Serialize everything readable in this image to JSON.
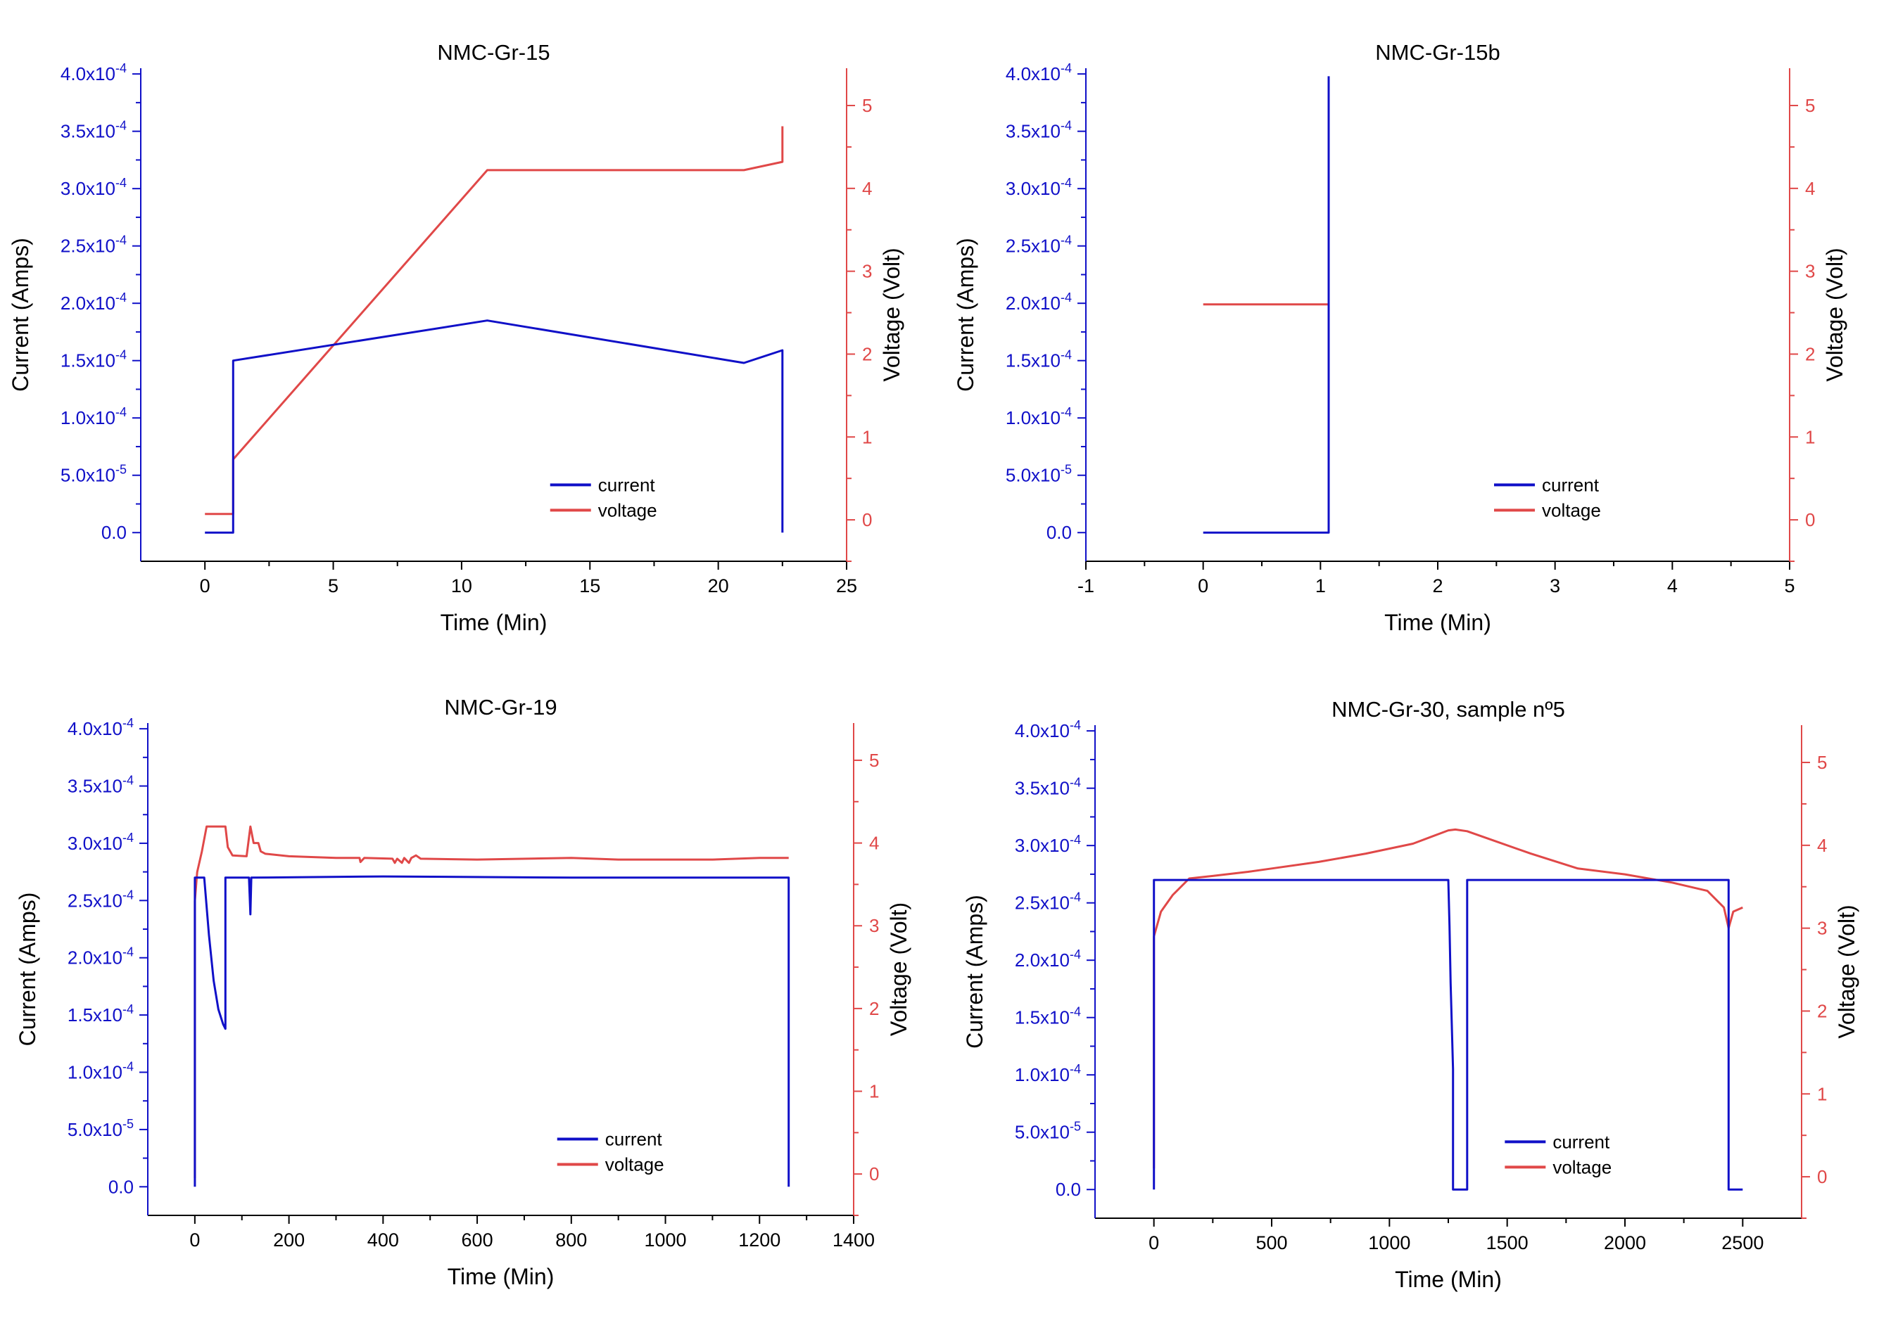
{
  "colors": {
    "current": "#1010c8",
    "voltage": "#e04848",
    "axis": "#000000",
    "text": "#000000"
  },
  "chart_data": [
    {
      "type": "line",
      "title": "NMC-Gr-15",
      "xlabel": "Time (Min)",
      "ylabel": "Current (Amps)",
      "y2label": "Voltage (Volt)",
      "xlim": [
        -2.5,
        25
      ],
      "ylim": [
        -2.5e-05,
        0.000405
      ],
      "y2lim": [
        -0.5,
        5.45
      ],
      "xticks": [
        0,
        5,
        10,
        15,
        20,
        25
      ],
      "xtick_labels": [
        "0",
        "5",
        "10",
        "15",
        "20",
        "25"
      ],
      "yticks": [
        0,
        5e-05,
        0.0001,
        0.00015,
        0.0002,
        0.00025,
        0.0003,
        0.00035,
        0.0004
      ],
      "ytick_labels": [
        {
          "mant": "0.0",
          "exp": ""
        },
        {
          "mant": "5.0x10",
          "exp": "-5"
        },
        {
          "mant": "1.0x10",
          "exp": "-4"
        },
        {
          "mant": "1.5x10",
          "exp": "-4"
        },
        {
          "mant": "2.0x10",
          "exp": "-4"
        },
        {
          "mant": "2.5x10",
          "exp": "-4"
        },
        {
          "mant": "3.0x10",
          "exp": "-4"
        },
        {
          "mant": "3.5x10",
          "exp": "-4"
        },
        {
          "mant": "4.0x10",
          "exp": "-4"
        }
      ],
      "y2ticks": [
        0,
        1,
        2,
        3,
        4,
        5
      ],
      "y2tick_labels": [
        "0",
        "1",
        "2",
        "3",
        "4",
        "5"
      ],
      "legend": {
        "position": "bottom-right",
        "entries": [
          "current",
          "voltage"
        ]
      },
      "series": [
        {
          "name": "current",
          "axis": "left",
          "points": [
            [
              0,
              0
            ],
            [
              1.1,
              0
            ],
            [
              1.1,
              0.00015
            ],
            [
              11,
              0.000185
            ],
            [
              21,
              0.000148
            ],
            [
              22.5,
              0.000159
            ],
            [
              22.5,
              0
            ]
          ]
        },
        {
          "name": "voltage",
          "axis": "right",
          "points": [
            [
              0,
              0.07
            ],
            [
              1.1,
              0.07
            ],
            [
              1.1,
              0.73
            ],
            [
              11,
              4.22
            ],
            [
              21,
              4.22
            ],
            [
              22.5,
              4.32
            ],
            [
              22.5,
              4.75
            ]
          ]
        }
      ]
    },
    {
      "type": "line",
      "title": "NMC-Gr-15b",
      "xlabel": "Time (Min)",
      "ylabel": "Current (Amps)",
      "y2label": "Voltage (Volt)",
      "xlim": [
        -1,
        5
      ],
      "ylim": [
        -2.5e-05,
        0.000405
      ],
      "y2lim": [
        -0.5,
        5.45
      ],
      "xticks": [
        -1,
        0,
        1,
        2,
        3,
        4,
        5
      ],
      "xtick_labels": [
        "-1",
        "0",
        "1",
        "2",
        "3",
        "4",
        "5"
      ],
      "yticks": [
        0,
        5e-05,
        0.0001,
        0.00015,
        0.0002,
        0.00025,
        0.0003,
        0.00035,
        0.0004
      ],
      "ytick_labels": [
        {
          "mant": "0.0",
          "exp": ""
        },
        {
          "mant": "5.0x10",
          "exp": "-5"
        },
        {
          "mant": "1.0x10",
          "exp": "-4"
        },
        {
          "mant": "1.5x10",
          "exp": "-4"
        },
        {
          "mant": "2.0x10",
          "exp": "-4"
        },
        {
          "mant": "2.5x10",
          "exp": "-4"
        },
        {
          "mant": "3.0x10",
          "exp": "-4"
        },
        {
          "mant": "3.5x10",
          "exp": "-4"
        },
        {
          "mant": "4.0x10",
          "exp": "-4"
        }
      ],
      "y2ticks": [
        0,
        1,
        2,
        3,
        4,
        5
      ],
      "y2tick_labels": [
        "0",
        "1",
        "2",
        "3",
        "4",
        "5"
      ],
      "legend": {
        "position": "bottom-right",
        "entries": [
          "current",
          "voltage"
        ]
      },
      "series": [
        {
          "name": "current",
          "axis": "left",
          "points": [
            [
              0,
              0
            ],
            [
              1.07,
              0
            ],
            [
              1.07,
              0.000398
            ]
          ]
        },
        {
          "name": "voltage",
          "axis": "right",
          "points": [
            [
              0,
              2.6
            ],
            [
              1.07,
              2.6
            ],
            [
              1.07,
              4.4
            ]
          ]
        }
      ]
    },
    {
      "type": "line",
      "title": "NMC-Gr-19",
      "xlabel": "Time (Min)",
      "ylabel": "Current (Amps)",
      "y2label": "Voltage (Volt)",
      "xlim": [
        -100,
        1400
      ],
      "ylim": [
        -2.5e-05,
        0.000405
      ],
      "y2lim": [
        -0.5,
        5.45
      ],
      "xticks": [
        0,
        200,
        400,
        600,
        800,
        1000,
        1200,
        1400
      ],
      "xtick_labels": [
        "0",
        "200",
        "400",
        "600",
        "800",
        "1000",
        "1200",
        "1400"
      ],
      "yticks": [
        0,
        5e-05,
        0.0001,
        0.00015,
        0.0002,
        0.00025,
        0.0003,
        0.00035,
        0.0004
      ],
      "ytick_labels": [
        {
          "mant": "0.0",
          "exp": ""
        },
        {
          "mant": "5.0x10",
          "exp": "-5"
        },
        {
          "mant": "1.0x10",
          "exp": "-4"
        },
        {
          "mant": "1.5x10",
          "exp": "-4"
        },
        {
          "mant": "2.0x10",
          "exp": "-4"
        },
        {
          "mant": "2.5x10",
          "exp": "-4"
        },
        {
          "mant": "3.0x10",
          "exp": "-4"
        },
        {
          "mant": "3.5x10",
          "exp": "-4"
        },
        {
          "mant": "4.0x10",
          "exp": "-4"
        }
      ],
      "y2ticks": [
        0,
        1,
        2,
        3,
        4,
        5
      ],
      "y2tick_labels": [
        "0",
        "1",
        "2",
        "3",
        "4",
        "5"
      ],
      "legend": {
        "position": "bottom-right",
        "entries": [
          "current",
          "voltage"
        ]
      },
      "series": [
        {
          "name": "current",
          "axis": "left",
          "points": [
            [
              0,
              0
            ],
            [
              0,
              0.00027
            ],
            [
              20,
              0.00027
            ],
            [
              30,
              0.00022
            ],
            [
              40,
              0.00018
            ],
            [
              50,
              0.000155
            ],
            [
              60,
              0.000142
            ],
            [
              65,
              0.000138
            ],
            [
              65,
              0.00027
            ],
            [
              115,
              0.00027
            ],
            [
              118,
              0.000238
            ],
            [
              120,
              0.00027
            ],
            [
              400,
              0.000271
            ],
            [
              800,
              0.00027
            ],
            [
              1200,
              0.00027
            ],
            [
              1262,
              0.00027
            ],
            [
              1262,
              0
            ]
          ]
        },
        {
          "name": "voltage",
          "axis": "right",
          "points": [
            [
              0,
              -0.05
            ],
            [
              0,
              3.3
            ],
            [
              5,
              3.65
            ],
            [
              15,
              3.9
            ],
            [
              25,
              4.2
            ],
            [
              65,
              4.2
            ],
            [
              70,
              3.95
            ],
            [
              80,
              3.85
            ],
            [
              110,
              3.84
            ],
            [
              118,
              4.2
            ],
            [
              125,
              4.0
            ],
            [
              135,
              4.0
            ],
            [
              140,
              3.9
            ],
            [
              150,
              3.87
            ],
            [
              200,
              3.84
            ],
            [
              300,
              3.82
            ],
            [
              350,
              3.82
            ],
            [
              352,
              3.77
            ],
            [
              360,
              3.82
            ],
            [
              420,
              3.81
            ],
            [
              425,
              3.76
            ],
            [
              430,
              3.81
            ],
            [
              440,
              3.76
            ],
            [
              445,
              3.82
            ],
            [
              455,
              3.76
            ],
            [
              460,
              3.82
            ],
            [
              470,
              3.85
            ],
            [
              480,
              3.81
            ],
            [
              600,
              3.8
            ],
            [
              800,
              3.82
            ],
            [
              900,
              3.8
            ],
            [
              1000,
              3.8
            ],
            [
              1100,
              3.8
            ],
            [
              1200,
              3.82
            ],
            [
              1262,
              3.82
            ]
          ]
        }
      ]
    },
    {
      "type": "line",
      "title": "NMC-Gr-30, sample nº5",
      "xlabel": "Time (Min)",
      "ylabel": "Current (Amps)",
      "y2label": "Voltage (Volt)",
      "xlim": [
        -250,
        2750
      ],
      "ylim": [
        -2.5e-05,
        0.000405
      ],
      "y2lim": [
        -0.5,
        5.45
      ],
      "xticks": [
        0,
        500,
        1000,
        1500,
        2000,
        2500
      ],
      "xtick_labels": [
        "0",
        "500",
        "1000",
        "1500",
        "2000",
        "2500"
      ],
      "yticks": [
        0,
        5e-05,
        0.0001,
        0.00015,
        0.0002,
        0.00025,
        0.0003,
        0.00035,
        0.0004
      ],
      "ytick_labels": [
        {
          "mant": "0.0",
          "exp": ""
        },
        {
          "mant": "5.0x10",
          "exp": "-5"
        },
        {
          "mant": "1.0x10",
          "exp": "-4"
        },
        {
          "mant": "1.5x10",
          "exp": "-4"
        },
        {
          "mant": "2.0x10",
          "exp": "-4"
        },
        {
          "mant": "2.5x10",
          "exp": "-4"
        },
        {
          "mant": "3.0x10",
          "exp": "-4"
        },
        {
          "mant": "3.5x10",
          "exp": "-4"
        },
        {
          "mant": "4.0x10",
          "exp": "-4"
        }
      ],
      "y2ticks": [
        0,
        1,
        2,
        3,
        4,
        5
      ],
      "y2tick_labels": [
        "0",
        "1",
        "2",
        "3",
        "4",
        "5"
      ],
      "legend": {
        "position": "bottom-right",
        "entries": [
          "current",
          "voltage"
        ]
      },
      "series": [
        {
          "name": "current",
          "axis": "left",
          "points": [
            [
              0,
              0
            ],
            [
              0,
              2e-05
            ],
            [
              0,
              0.00027
            ],
            [
              1250,
              0.00027
            ],
            [
              1255,
              0.00023
            ],
            [
              1260,
              0.00018
            ],
            [
              1270,
              0.000105
            ],
            [
              1270,
              0
            ],
            [
              1330,
              0
            ],
            [
              1330,
              0.00027
            ],
            [
              2440,
              0.00027
            ],
            [
              2440,
              0
            ],
            [
              2500,
              0
            ]
          ]
        },
        {
          "name": "voltage",
          "axis": "right",
          "points": [
            [
              0,
              0.1
            ],
            [
              0,
              2.9
            ],
            [
              30,
              3.2
            ],
            [
              80,
              3.4
            ],
            [
              150,
              3.6
            ],
            [
              250,
              3.63
            ],
            [
              400,
              3.68
            ],
            [
              500,
              3.72
            ],
            [
              700,
              3.8
            ],
            [
              900,
              3.9
            ],
            [
              1100,
              4.02
            ],
            [
              1250,
              4.18
            ],
            [
              1280,
              4.19
            ],
            [
              1330,
              4.17
            ],
            [
              1400,
              4.1
            ],
            [
              1600,
              3.9
            ],
            [
              1800,
              3.72
            ],
            [
              2000,
              3.65
            ],
            [
              2200,
              3.55
            ],
            [
              2350,
              3.45
            ],
            [
              2420,
              3.25
            ],
            [
              2440,
              3.0
            ],
            [
              2460,
              3.2
            ],
            [
              2500,
              3.25
            ]
          ]
        }
      ]
    }
  ]
}
